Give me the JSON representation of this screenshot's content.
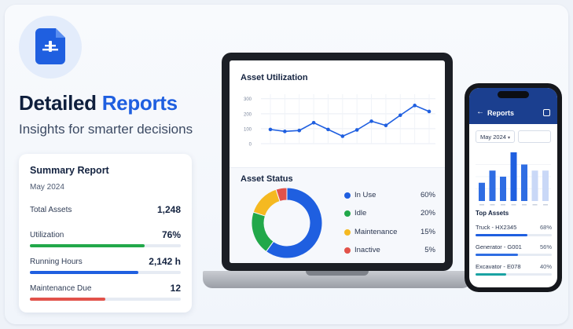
{
  "hero": {
    "icon": "report-document-icon",
    "title_main": "Detailed",
    "title_accent": "Reports",
    "subtitle": "Insights for smarter decisions"
  },
  "summary": {
    "title": "Summary Report",
    "month": "May 2024",
    "rows": [
      {
        "label": "Total Assets",
        "value": "1,248",
        "bar": null
      },
      {
        "label": "Utilization",
        "value": "76%",
        "bar": 0.76,
        "color": "#22a84a"
      },
      {
        "label": "Running Hours",
        "value": "2,142 h",
        "bar": 0.72,
        "color": "#1f5fe0"
      },
      {
        "label": "Maintenance Due",
        "value": "12",
        "bar": 0.5,
        "color": "#e2524a"
      }
    ]
  },
  "laptop": {
    "utilization_title": "Asset Utilization",
    "status_title": "Asset Status"
  },
  "chart_data": [
    {
      "type": "line",
      "title": "Asset Utilization",
      "yticks": [
        "300",
        "200",
        "100",
        "0"
      ],
      "ylim": [
        0,
        330
      ],
      "x": [
        1,
        2,
        3,
        4,
        5,
        6,
        7,
        8,
        9,
        10,
        11,
        12
      ],
      "values": [
        95,
        82,
        88,
        140,
        95,
        50,
        92,
        150,
        122,
        190,
        255,
        215
      ],
      "color": "#1f5fe0",
      "grid": true
    },
    {
      "type": "pie",
      "title": "Asset Status",
      "donut": true,
      "slices": [
        {
          "label": "In Use",
          "pct": "60%",
          "value": 60,
          "color": "#1f5fe0"
        },
        {
          "label": "Idle",
          "pct": "20%",
          "value": 20,
          "color": "#22a84a"
        },
        {
          "label": "Maintenance",
          "pct": "15%",
          "value": 15,
          "color": "#f5b921"
        },
        {
          "label": "Inactive",
          "pct": "5%",
          "value": 5,
          "color": "#e2524a"
        }
      ]
    },
    {
      "type": "bar",
      "values": [
        3,
        5,
        4,
        8,
        6,
        5,
        5
      ],
      "ylim": [
        0,
        8
      ],
      "colors": [
        "#2f6de3",
        "#2f6de3",
        "#2f6de3",
        "#1f5fe0",
        "#2f6de3",
        "#c9d8f7",
        "#c9d8f7"
      ]
    }
  ],
  "phone": {
    "title": "Reports",
    "month_select": "May 2024",
    "top_assets_title": "Top Assets",
    "top_assets": [
      {
        "name": "Truck - HX2345",
        "pct": "68%",
        "value": 0.68,
        "color": "#1f5fe0"
      },
      {
        "name": "Generator - G001",
        "pct": "56%",
        "value": 0.56,
        "color": "#2f6de3"
      },
      {
        "name": "Excavator - E078",
        "pct": "40%",
        "value": 0.4,
        "color": "#1aa3a3"
      }
    ]
  }
}
